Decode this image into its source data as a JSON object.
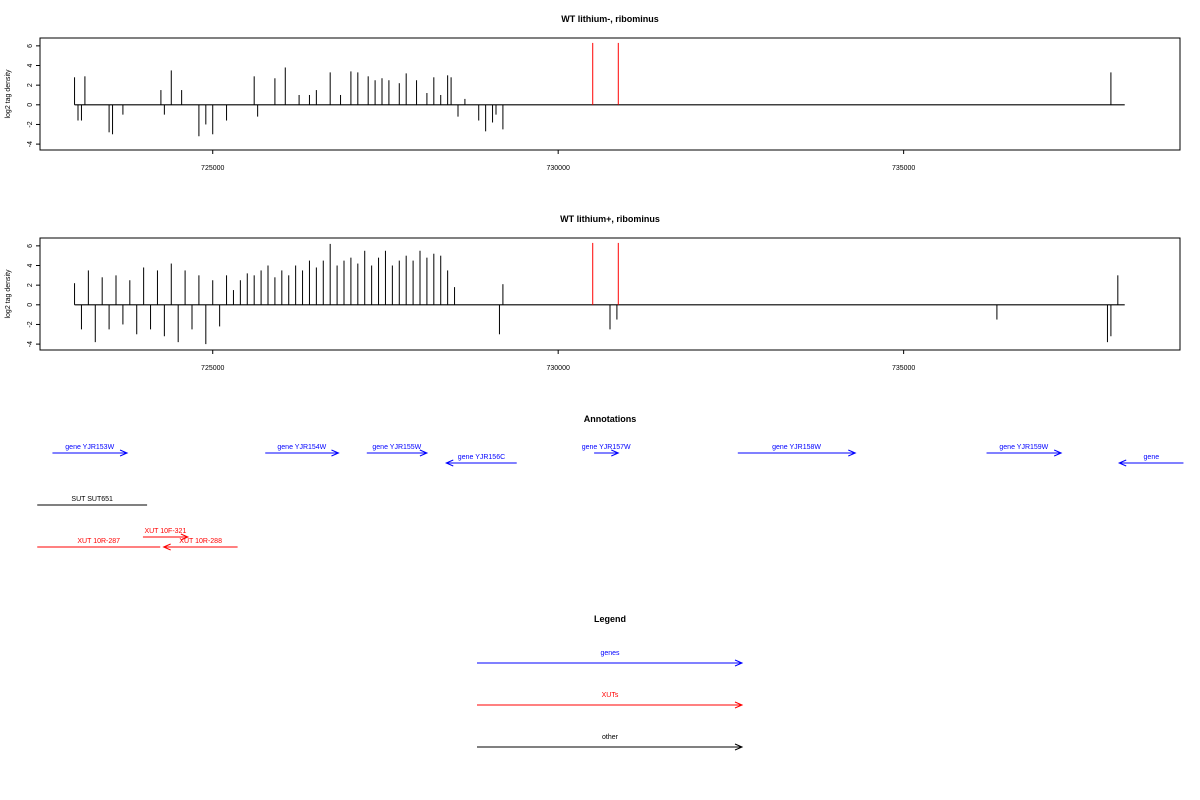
{
  "chart_data": [
    {
      "type": "bar",
      "title": "WT lithium-, ribominus",
      "ylabel": "log2 tag density",
      "xlim": [
        722500,
        739000
      ],
      "ylim": [
        -4.6,
        6.8
      ],
      "xticks": [
        "725000",
        "730000",
        "735000"
      ],
      "yticks": [
        "-4",
        "-2",
        "0",
        "2",
        "4",
        "6"
      ],
      "grid": false,
      "series": [
        {
          "color": "#000000",
          "x": [
            723000,
            723050,
            723100,
            723150,
            723500,
            723550,
            723700,
            724250,
            724300,
            724400,
            724550,
            724800,
            724900,
            725000,
            725200,
            725600,
            725650,
            725900,
            726050,
            726250,
            726400,
            726500,
            726700,
            726850,
            727000,
            727100,
            727250,
            727350,
            727450,
            727550,
            727700,
            727800,
            727950,
            728100,
            728200,
            728300,
            728400,
            728450,
            728550,
            728650,
            728850,
            728950,
            729050,
            729100,
            729200,
            738000
          ],
          "values": [
            2.8,
            -1.6,
            -1.6,
            2.9,
            -2.8,
            -3.0,
            -1.0,
            1.5,
            -1.0,
            3.5,
            1.5,
            -3.2,
            -2.0,
            -3.0,
            -1.6,
            2.9,
            -1.2,
            2.7,
            3.8,
            1.0,
            1.0,
            1.5,
            3.3,
            1.0,
            3.4,
            3.3,
            2.9,
            2.5,
            2.7,
            2.5,
            2.2,
            3.2,
            2.5,
            1.2,
            2.8,
            1.0,
            3.0,
            2.8,
            -1.2,
            0.6,
            -1.6,
            -2.7,
            -1.8,
            -1.0,
            -2.5,
            3.3
          ]
        },
        {
          "color": "#ff0000",
          "x": [
            730500,
            730870
          ],
          "values": [
            6.3,
            6.3
          ]
        }
      ]
    },
    {
      "type": "bar",
      "title": "WT lithium+, ribominus",
      "ylabel": "log2 tag density",
      "xlim": [
        722500,
        739000
      ],
      "ylim": [
        -4.6,
        6.8
      ],
      "xticks": [
        "725000",
        "730000",
        "735000"
      ],
      "yticks": [
        "-4",
        "-2",
        "0",
        "2",
        "4",
        "6"
      ],
      "grid": false,
      "series": [
        {
          "color": "#000000",
          "x": [
            723000,
            723100,
            723200,
            723300,
            723400,
            723500,
            723600,
            723700,
            723800,
            723900,
            724000,
            724100,
            724200,
            724300,
            724400,
            724500,
            724600,
            724700,
            724800,
            724900,
            725000,
            725100,
            725200,
            725300,
            725400,
            725500,
            725600,
            725700,
            725800,
            725900,
            726000,
            726100,
            726200,
            726300,
            726400,
            726500,
            726600,
            726700,
            726800,
            726900,
            727000,
            727100,
            727200,
            727300,
            727400,
            727500,
            727600,
            727700,
            727800,
            727900,
            728000,
            728100,
            728200,
            728300,
            728400,
            728500,
            729150,
            729200,
            730750,
            730850,
            736350,
            737950,
            738000,
            738100
          ],
          "values": [
            2.2,
            -2.5,
            3.5,
            -3.8,
            2.8,
            -2.5,
            3.0,
            -2.0,
            2.5,
            -3.0,
            3.8,
            -2.5,
            3.5,
            -3.2,
            4.2,
            -3.8,
            3.5,
            -2.5,
            3.0,
            -4.0,
            2.5,
            -2.2,
            3.0,
            1.5,
            2.5,
            3.2,
            3.0,
            3.5,
            4.0,
            2.8,
            3.5,
            3.0,
            4.0,
            3.5,
            4.5,
            3.8,
            4.5,
            6.2,
            4.0,
            4.5,
            4.8,
            4.2,
            5.5,
            4.0,
            4.8,
            5.5,
            4.0,
            4.5,
            5.0,
            4.5,
            5.5,
            4.8,
            5.2,
            5.0,
            3.5,
            1.8,
            -3.0,
            2.1,
            -2.5,
            -1.5,
            -1.5,
            -3.8,
            -3.2,
            3.0
          ]
        },
        {
          "color": "#ff0000",
          "x": [
            730500,
            730870
          ],
          "values": [
            6.3,
            6.3
          ]
        }
      ]
    }
  ],
  "annotations": {
    "title": "Annotations",
    "features": [
      {
        "label": "gene YJR153W",
        "start": 722680,
        "end": 723760,
        "strand": "+",
        "color": "#0000ff",
        "row": 0
      },
      {
        "label": "gene YJR154W",
        "start": 725760,
        "end": 726820,
        "strand": "+",
        "color": "#0000ff",
        "row": 0
      },
      {
        "label": "gene YJR155W",
        "start": 727230,
        "end": 728100,
        "strand": "+",
        "color": "#0000ff",
        "row": 0
      },
      {
        "label": "gene YJR156C",
        "start": 728380,
        "end": 729400,
        "strand": "-",
        "color": "#0000ff",
        "row": 1
      },
      {
        "label": "gene YJR157W",
        "start": 730520,
        "end": 730870,
        "strand": "+",
        "color": "#0000ff",
        "row": 0
      },
      {
        "label": "gene YJR158W",
        "start": 732600,
        "end": 734300,
        "strand": "+",
        "color": "#0000ff",
        "row": 0
      },
      {
        "label": "gene YJR159W",
        "start": 736200,
        "end": 737280,
        "strand": "+",
        "color": "#0000ff",
        "row": 0
      },
      {
        "label": "gene",
        "start": 738120,
        "end": 739050,
        "strand": "-",
        "color": "#0000ff",
        "row": 1
      },
      {
        "label": "SUT SUT651",
        "start": 722460,
        "end": 724050,
        "strand": "none",
        "color": "#000000",
        "row": 3
      },
      {
        "label": "XUT 10F-321",
        "start": 723990,
        "end": 724640,
        "strand": "+",
        "color": "#ff0000",
        "row": 4
      },
      {
        "label": "XUT 10R-287",
        "start": 722460,
        "end": 724240,
        "strand": "none",
        "color": "#ff0000",
        "row": 5
      },
      {
        "label": "XUT 10R-288",
        "start": 724290,
        "end": 725360,
        "strand": "-",
        "color": "#ff0000",
        "row": 5
      }
    ]
  },
  "legend": {
    "title": "Legend",
    "items": [
      {
        "label": "genes",
        "color": "#0000ff"
      },
      {
        "label": "XUTs",
        "color": "#ff0000"
      },
      {
        "label": "other",
        "color": "#000000"
      }
    ]
  }
}
